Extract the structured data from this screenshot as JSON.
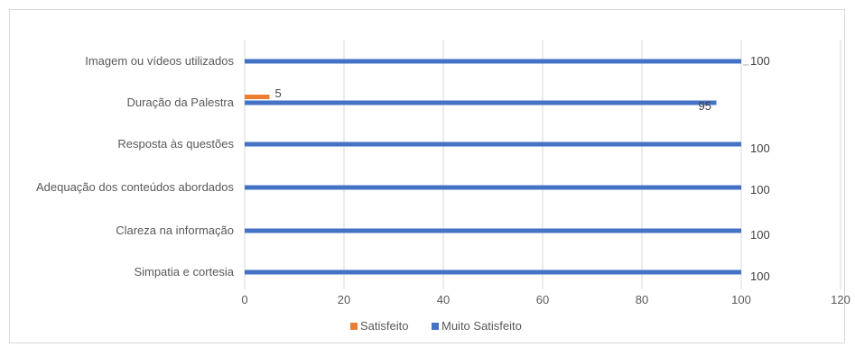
{
  "chart_data": {
    "type": "bar",
    "orientation": "horizontal",
    "title": "",
    "xlabel": "",
    "ylabel": "",
    "categories": [
      "Imagem ou vídeos utilizados",
      "Duração da Palestra",
      "Resposta às questões",
      "Adequação dos conteúdos abordados",
      "Clareza na informação",
      "Simpatia e cortesia"
    ],
    "series": [
      {
        "name": "Satisfeito",
        "values": [
          null,
          5,
          null,
          null,
          null,
          null
        ],
        "color": "#ed7d31"
      },
      {
        "name": "Muito Satisfeito",
        "values": [
          100,
          95,
          100,
          100,
          100,
          100
        ],
        "color": "#4472c4"
      }
    ],
    "xlim": [
      0,
      120
    ],
    "xticks": [
      0,
      20,
      40,
      60,
      80,
      100,
      120
    ],
    "grid": true,
    "legend_position": "bottom"
  }
}
